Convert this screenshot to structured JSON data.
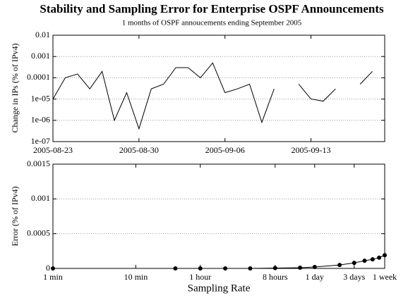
{
  "chart_data": [
    {
      "type": "line",
      "title": "Stability and Sampling Error for Enterprise OSPF Announcements",
      "subtitle": "1 months of OSPF annoucements ending September 2005",
      "y_label": "Change in IPs (% of IPv4)",
      "color": "#000000",
      "ylog": true,
      "grid": true,
      "x": [
        "2005-08-23",
        "2005-08-24",
        "2005-08-25",
        "2005-08-26",
        "2005-08-27",
        "2005-08-28",
        "2005-08-29",
        "2005-08-30",
        "2005-08-31",
        "2005-09-01",
        "2005-09-02",
        "2005-09-03",
        "2005-09-04",
        "2005-09-05",
        "2005-09-06",
        "2005-09-07",
        "2005-09-08",
        "2005-09-09",
        "2005-09-10",
        "2005-09-11",
        "2005-09-12",
        "2005-09-13",
        "2005-09-14",
        "2005-09-15",
        "2005-09-16",
        "2005-09-17",
        "2005-09-18"
      ],
      "values": [
        1e-05,
        0.0001,
        0.00015,
        3e-05,
        0.0002,
        1e-06,
        2e-05,
        4e-07,
        3e-05,
        5e-05,
        0.0003,
        0.0003,
        0.0001,
        0.0005,
        2e-05,
        3e-05,
        5e-05,
        8e-07,
        3e-05,
        null,
        5e-05,
        1e-05,
        8e-06,
        3e-05,
        null,
        5e-05,
        0.0002
      ],
      "xlim": [
        "2005-08-23",
        "2005-09-19"
      ],
      "xticks": [
        "2005-08-23",
        "2005-08-30",
        "2005-09-06",
        "2005-09-13"
      ],
      "ylim": [
        1e-07,
        0.01
      ],
      "yticks": [
        {
          "value": 1e-07,
          "label": "1e-07"
        },
        {
          "value": 1e-06,
          "label": "1e-06"
        },
        {
          "value": 1e-05,
          "label": "1e-05"
        },
        0.0001,
        0.001,
        0.01
      ]
    },
    {
      "type": "line",
      "y_label": "Error (% of IPv4)",
      "x_label": "Sampling Rate",
      "color": "#000000",
      "xlog": true,
      "grid": true,
      "markers": true,
      "x": [
        1,
        30,
        60,
        120,
        240,
        480,
        960,
        1440,
        2880,
        4320,
        5760,
        7200,
        8640,
        10080
      ],
      "values": [
        0,
        0,
        0,
        0,
        0,
        5e-06,
        1e-05,
        2e-05,
        5e-05,
        8e-05,
        0.00011,
        0.00013,
        0.000155,
        0.00019
      ],
      "xlim": [
        1,
        10080
      ],
      "xticks": [
        {
          "value": 1,
          "label": "1 min"
        },
        {
          "value": 10,
          "label": "10 min"
        },
        {
          "value": 60,
          "label": "1 hour"
        },
        {
          "value": 480,
          "label": "8 hours"
        },
        {
          "value": 1440,
          "label": "1 day"
        },
        {
          "value": 4320,
          "label": "3 days"
        },
        {
          "value": 10080,
          "label": "1 week"
        }
      ],
      "ylim": [
        0,
        0.0015
      ],
      "yticks": [
        0,
        0.0005,
        0.001,
        0.0015
      ]
    }
  ]
}
